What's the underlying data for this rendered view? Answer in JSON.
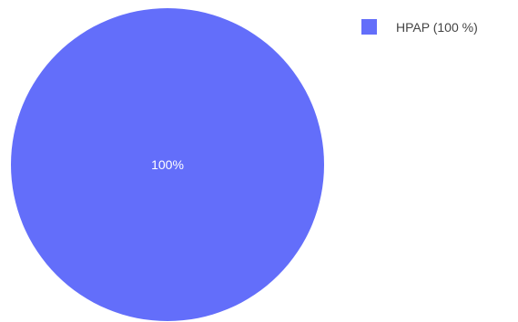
{
  "chart_data": {
    "type": "pie",
    "slices": [
      {
        "label": "HPAP",
        "value": 100,
        "percent_label": "100%",
        "color": "#636efa"
      }
    ],
    "legend": {
      "placement": "top-right",
      "entries": [
        "HPAP (100 %)"
      ]
    }
  }
}
